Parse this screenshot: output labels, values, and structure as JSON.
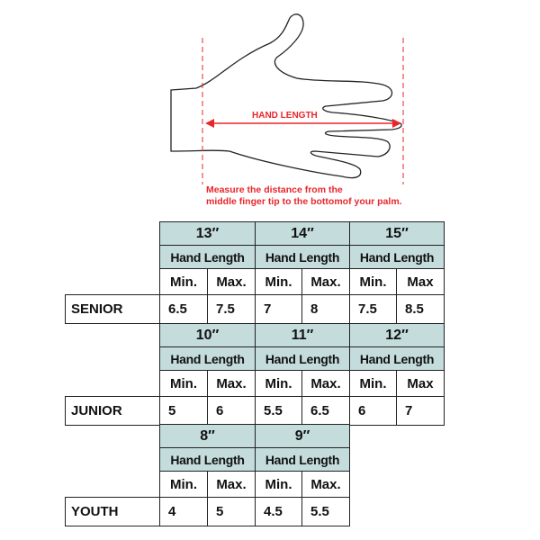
{
  "diagram": {
    "measure_label": "HAND LENGTH",
    "instruction_line1": "Measure the distance from the",
    "instruction_line2": "middle finger tip to the bottomof your palm.",
    "accent_color": "#e8262b"
  },
  "table": {
    "header_color": "#c4dcdb",
    "groups": [
      {
        "category": "SENIOR",
        "sizes": [
          {
            "size": "13″",
            "label": "Hand Length",
            "min_label": "Min.",
            "max_label": "Max.",
            "min": "6.5",
            "max": "7.5"
          },
          {
            "size": "14″",
            "label": "Hand Length",
            "min_label": "Min.",
            "max_label": "Max.",
            "min": "7",
            "max": "8"
          },
          {
            "size": "15″",
            "label": "Hand Length",
            "min_label": "Min.",
            "max_label": "Max",
            "min": "7.5",
            "max": "8.5"
          }
        ]
      },
      {
        "category": "JUNIOR",
        "sizes": [
          {
            "size": "10″",
            "label": "Hand Length",
            "min_label": "Min.",
            "max_label": "Max.",
            "min": "5",
            "max": "6"
          },
          {
            "size": "11″",
            "label": "Hand Length",
            "min_label": "Min.",
            "max_label": "Max.",
            "min": "5.5",
            "max": "6.5"
          },
          {
            "size": "12″",
            "label": "Hand Length",
            "min_label": "Min.",
            "max_label": "Max",
            "min": "6",
            "max": "7"
          }
        ]
      },
      {
        "category": "YOUTH",
        "sizes": [
          {
            "size": "8″",
            "label": "Hand Length",
            "min_label": "Min.",
            "max_label": "Max.",
            "min": "4",
            "max": "5"
          },
          {
            "size": "9″",
            "label": "Hand Length",
            "min_label": "Min.",
            "max_label": "Max.",
            "min": "4.5",
            "max": "5.5"
          }
        ]
      }
    ]
  }
}
